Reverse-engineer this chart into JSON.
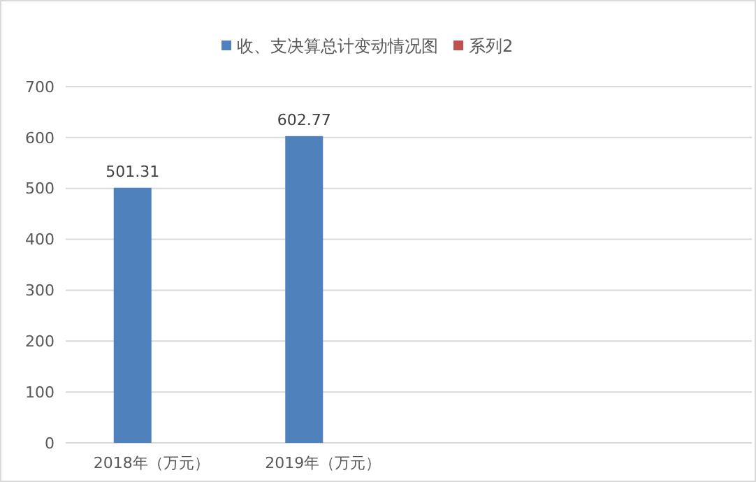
{
  "chart_data": {
    "type": "bar",
    "categories": [
      "2018年（万元）",
      "2019年（万元）",
      null,
      null
    ],
    "series": [
      {
        "name": "收、支决算总计变动情况图",
        "color": "#4f81bd",
        "values": [
          501.31,
          602.77,
          null,
          null
        ]
      },
      {
        "name": "系列2",
        "color": "#c0504d",
        "values": [
          null,
          null,
          null,
          null
        ]
      }
    ],
    "ylim": [
      0,
      700
    ],
    "yticks": [
      0,
      100,
      200,
      300,
      400,
      500,
      600,
      700
    ],
    "grid": "y",
    "legend": "top",
    "data_labels": true
  }
}
